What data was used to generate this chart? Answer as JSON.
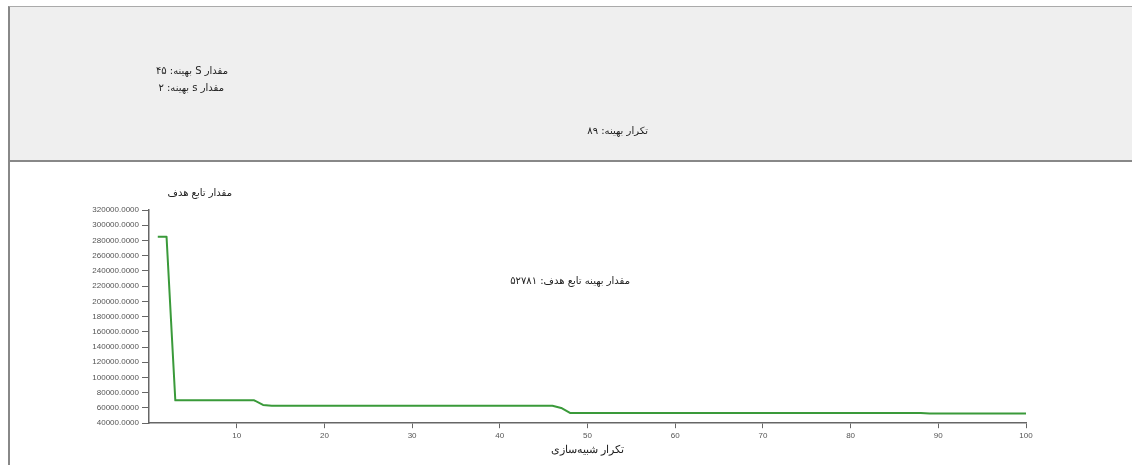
{
  "chart_data": {
    "type": "line",
    "xlabel": "تکرار شبیه‌سازی",
    "ylabel": "مقدار تابع هدف",
    "annotations": [
      "مقدار S بهینه:  ۴۵",
      "مقدار s بهینه: ۲",
      "تکرار بهینه: ۸۹",
      "مقدار بهینه تابع هدف: ۵۲۷۸۱"
    ],
    "x": [
      1,
      2,
      3,
      12,
      13,
      14,
      46,
      47,
      48,
      88,
      89,
      100
    ],
    "series": [
      {
        "color": "#3a9a3a",
        "values": [
          285000,
          285000,
          70000,
          70000,
          64000,
          63000,
          63000,
          60000,
          53500,
          53500,
          52781,
          52781
        ]
      }
    ],
    "xlim": [
      0,
      100
    ],
    "xticks": [
      10,
      20,
      30,
      40,
      50,
      60,
      70,
      80,
      90,
      100
    ],
    "ylim": [
      40000,
      320000
    ],
    "yticks": [
      {
        "value": 40000,
        "label": "40000.0000"
      },
      {
        "value": 60000,
        "label": "60000.0000"
      },
      {
        "value": 80000,
        "label": "80000.0000"
      },
      {
        "value": 100000,
        "label": "100000.0000"
      },
      {
        "value": 120000,
        "label": "120000.0000"
      },
      {
        "value": 140000,
        "label": "140000.0000"
      },
      {
        "value": 160000,
        "label": "160000.0000"
      },
      {
        "value": 180000,
        "label": "180000.0000"
      },
      {
        "value": 200000,
        "label": "200000.0000"
      },
      {
        "value": 220000,
        "label": "220000.0000"
      },
      {
        "value": 240000,
        "label": "240000.0000"
      },
      {
        "value": 260000,
        "label": "260000.0000"
      },
      {
        "value": 280000,
        "label": "280000.0000"
      },
      {
        "value": 300000,
        "label": "300000.0000"
      },
      {
        "value": 320000,
        "label": "320000.0000"
      }
    ],
    "legend": false,
    "marker": "none",
    "line_style": "solid"
  }
}
